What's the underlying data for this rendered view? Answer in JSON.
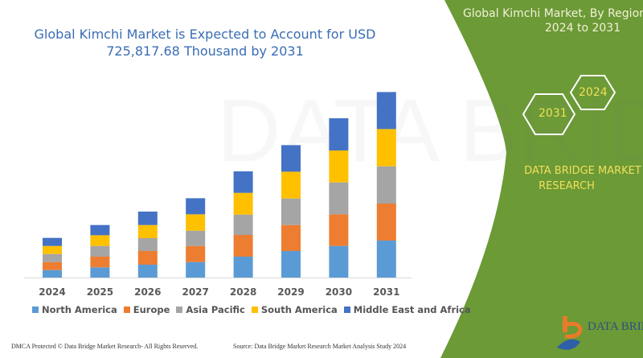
{
  "chart_data": {
    "type": "bar",
    "stacked": true,
    "title": "Global Kimchi Market is Expected to Account for USD 725,817.68 Thousand  by 2031",
    "title_lines": [
      "Global Kimchi Market is Expected to Account for USD",
      "725,817.68 Thousand  by 2031"
    ],
    "xlabel": "",
    "ylabel": "",
    "y_axis_shown": false,
    "grid": false,
    "legend_position": "bottom",
    "categories": [
      "2024",
      "2025",
      "2026",
      "2027",
      "2028",
      "2029",
      "2030",
      "2031"
    ],
    "series": [
      {
        "name": "North America",
        "color": "#5b9bd5",
        "values": [
          9.3,
          12.7,
          16,
          19.3,
          26,
          33,
          39.3,
          46
        ]
      },
      {
        "name": "Europe",
        "color": "#ed7d31",
        "values": [
          10,
          13.3,
          17,
          20,
          27,
          32.3,
          39.3,
          46
        ]
      },
      {
        "name": "Asia Pacific",
        "color": "#a5a5a5",
        "values": [
          10,
          13.3,
          16,
          19,
          25.3,
          33,
          39.7,
          46.3
        ]
      },
      {
        "name": "South America",
        "color": "#ffc000",
        "values": [
          10,
          13.3,
          16.3,
          20.3,
          27,
          33.3,
          39.7,
          46.3
        ]
      },
      {
        "name": "Middle East and Africa",
        "color": "#4472c4",
        "values": [
          10,
          12.7,
          16.7,
          20,
          26.7,
          33,
          40,
          46
        ]
      }
    ],
    "note": "relative units; no value axis printed"
  },
  "side_panel": {
    "title_line1": "Global Kimchi Market, By Region",
    "title_line2": "2024 to 2031",
    "hex_start": "2024",
    "hex_end": "2031",
    "brand_line1": "DATA BRIDGE MARKET",
    "brand_line2": "RESEARCH",
    "panel_color": "#6b9a36",
    "logo_text": "DATA BRIDGE"
  },
  "footer": {
    "left": "DMCA Protected © Data Bridge Market Research-  All Rights Reserved.",
    "right": "Source: Data Bridge Market Research  Market Analysis Study 2024"
  }
}
